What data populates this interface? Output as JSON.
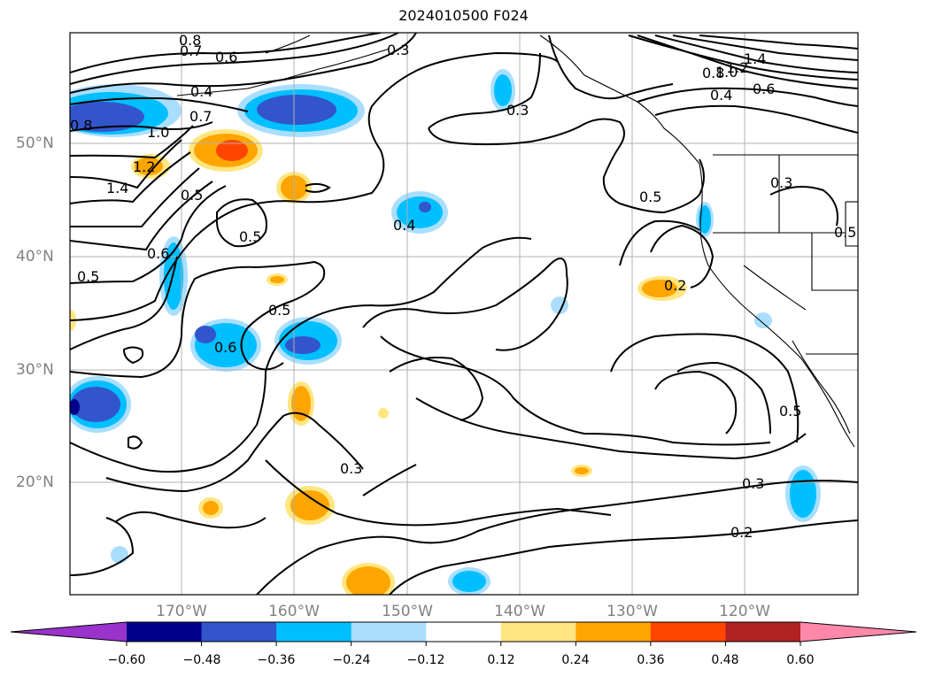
{
  "title": "2024010500 F024",
  "latitude_labels": [
    "50°N",
    "40°N",
    "30°N",
    "20°N"
  ],
  "longitude_labels": [
    "170°W",
    "160°W",
    "150°W",
    "140°W",
    "130°W",
    "120°W"
  ],
  "colorbar": {
    "tick_labels": [
      "−0.60",
      "−0.48",
      "−0.36",
      "−0.24",
      "−0.12",
      "0.12",
      "0.24",
      "0.36",
      "0.48",
      "0.60"
    ],
    "colors": [
      "#9933cc",
      "#00008b",
      "#3355cc",
      "#00bfff",
      "#aadeff",
      "#ffffff",
      "#ffe680",
      "#ffa500",
      "#ff4500",
      "#b22222",
      "#ff88aa"
    ]
  },
  "contour_labels": [
    "0.8",
    "0.7",
    "0.6",
    "0.4",
    "0.8",
    "1.0",
    "0.7",
    "1.2",
    "1.4",
    "0.5",
    "0.5",
    "0.6",
    "0.5",
    "0.4",
    "0.3",
    "0.5",
    "0.6",
    "0.5",
    "0.5",
    "0.3",
    "0.2",
    "0.3",
    "0.5",
    "0.3",
    "1.4",
    "1.2",
    "1.0",
    "0.8",
    "0.4",
    "0.6",
    "0.3",
    "0.2"
  ]
}
